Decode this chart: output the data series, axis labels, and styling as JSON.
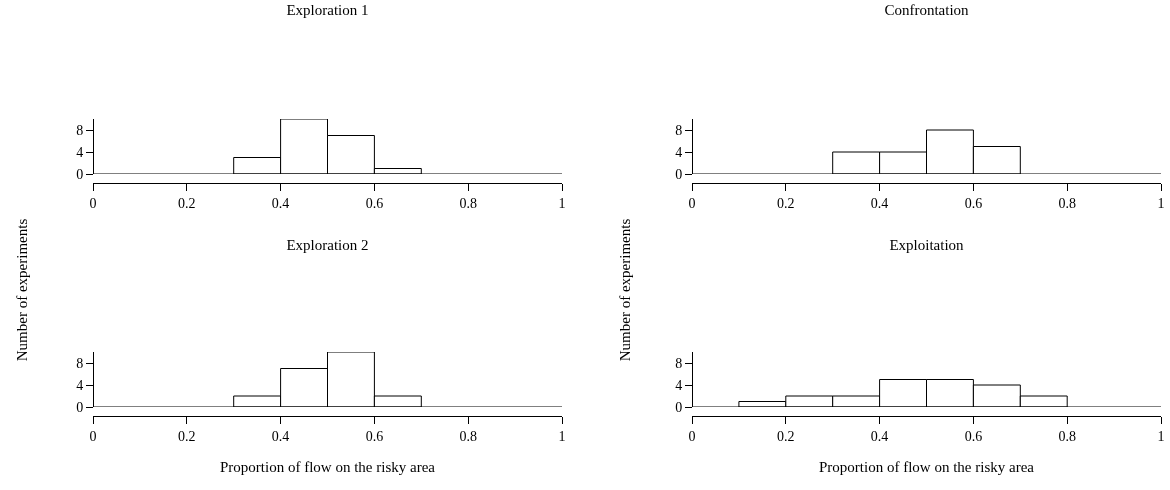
{
  "chart_data": [
    {
      "type": "histogram",
      "title": "Exploration 1",
      "ylabel": "Number of experiments",
      "bins": [
        0.3,
        0.4,
        0.5,
        0.6,
        0.7
      ],
      "values": [
        3,
        10,
        7,
        1
      ],
      "color": "#ffffff",
      "xlim": [
        0,
        1
      ],
      "xticks": [
        0,
        0.2,
        0.4,
        0.6,
        0.8,
        1
      ],
      "ylim": [
        0,
        10
      ],
      "yticks": [
        0,
        4,
        8
      ],
      "ref_lines": [
        {
          "axis": "y",
          "value": 0
        }
      ]
    },
    {
      "type": "histogram",
      "title": "Confrontation",
      "ylabel": "Number of experiments",
      "bins": [
        0.3,
        0.4,
        0.5,
        0.6,
        0.7
      ],
      "values": [
        4,
        4,
        8,
        5
      ],
      "color": "#ffffff",
      "xlim": [
        0,
        1
      ],
      "xticks": [
        0,
        0.2,
        0.4,
        0.6,
        0.8,
        1
      ],
      "ylim": [
        0,
        10
      ],
      "yticks": [
        0,
        4,
        8
      ],
      "ref_lines": [
        {
          "axis": "y",
          "value": 0
        }
      ]
    },
    {
      "type": "histogram",
      "title": "Exploration 2",
      "xlabel": "Proportion of flow on the risky area",
      "bins": [
        0.3,
        0.4,
        0.5,
        0.6,
        0.7
      ],
      "values": [
        2,
        7,
        10,
        2
      ],
      "color": "#ffffff",
      "xlim": [
        0,
        1
      ],
      "xticks": [
        0,
        0.2,
        0.4,
        0.6,
        0.8,
        1
      ],
      "ylim": [
        0,
        10
      ],
      "yticks": [
        0,
        4,
        8
      ],
      "ref_lines": [
        {
          "axis": "y",
          "value": 0
        }
      ]
    },
    {
      "type": "histogram",
      "title": "Exploitation",
      "xlabel": "Proportion of flow on the risky area",
      "bins": [
        0.1,
        0.2,
        0.3,
        0.4,
        0.5,
        0.6,
        0.7,
        0.8
      ],
      "values": [
        1,
        2,
        2,
        5,
        5,
        4,
        2
      ],
      "color": "#ffffff",
      "xlim": [
        0,
        1
      ],
      "xticks": [
        0,
        0.2,
        0.4,
        0.6,
        0.8,
        1
      ],
      "ylim": [
        0,
        10
      ],
      "yticks": [
        0,
        4,
        8
      ],
      "ref_lines": [
        {
          "axis": "y",
          "value": 0
        }
      ]
    }
  ]
}
